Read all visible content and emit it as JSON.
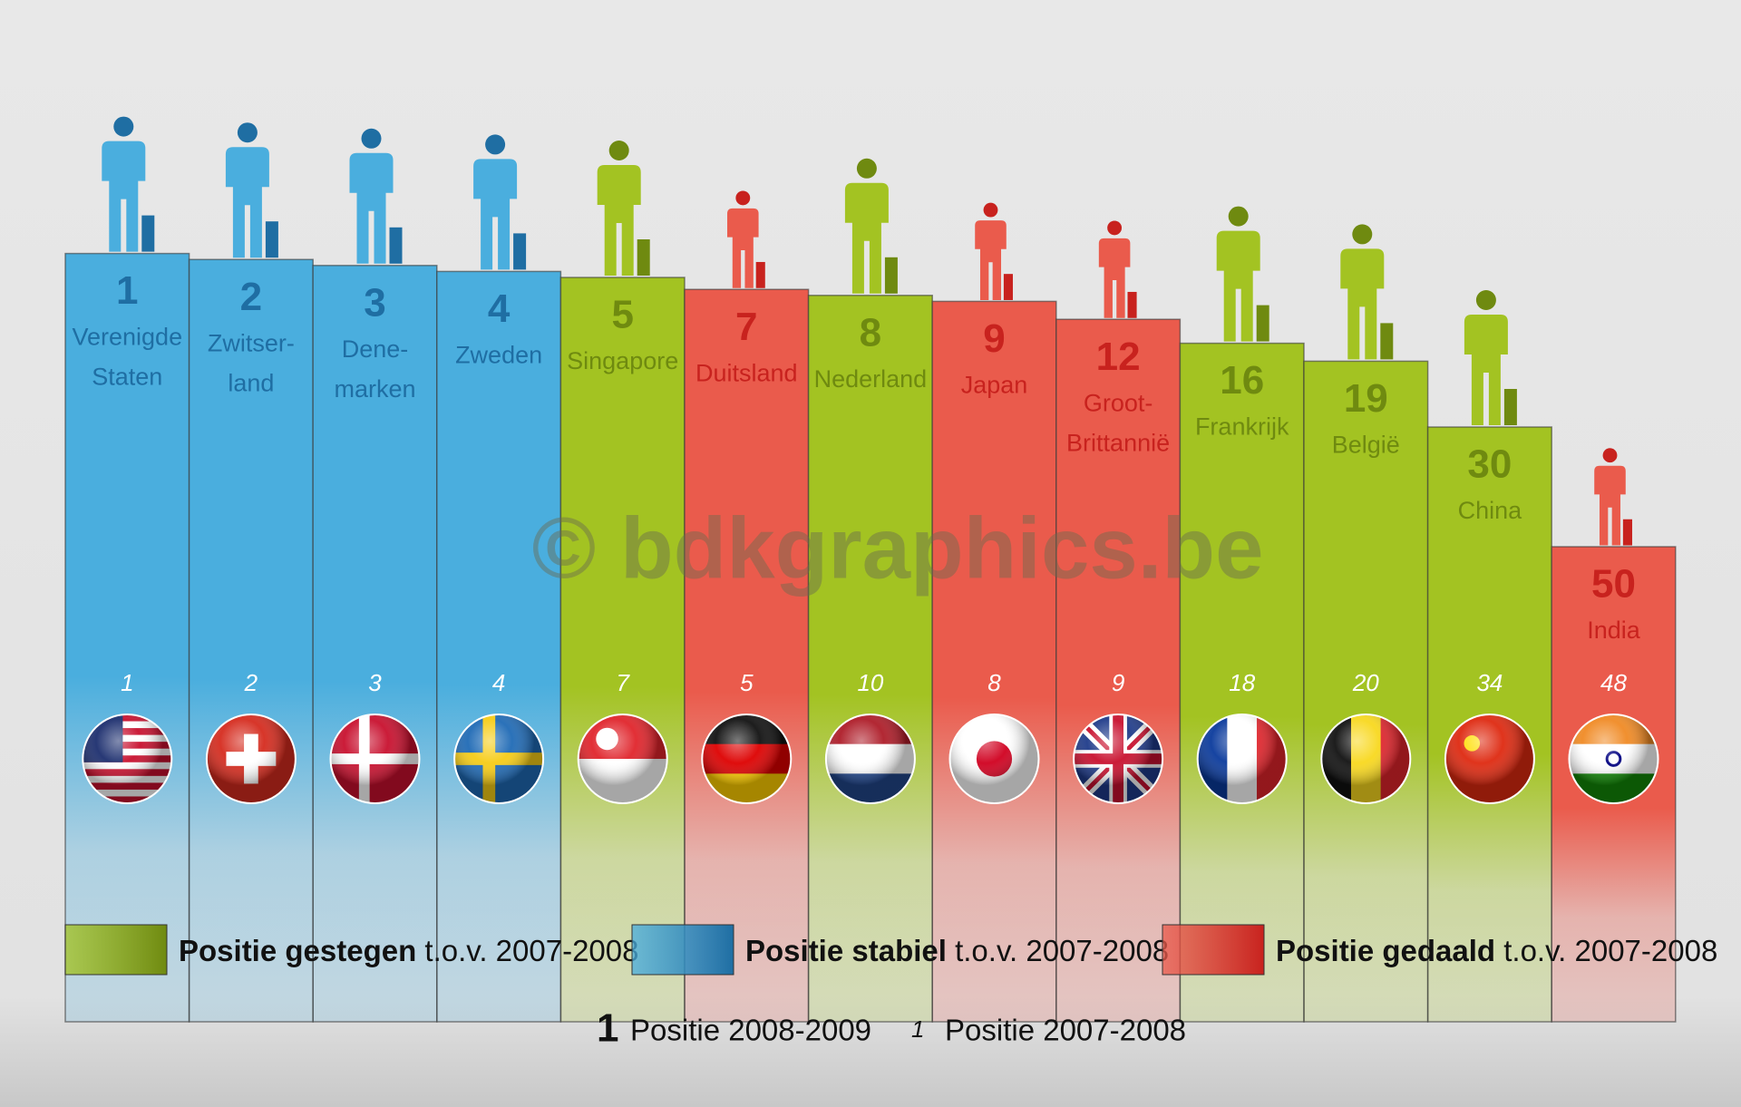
{
  "chart_data": {
    "type": "bar",
    "watermark": "© bdkgraphics.be",
    "categories": [
      [
        "Verenigde",
        "Staten"
      ],
      [
        "Zwitser-",
        "land"
      ],
      [
        "Dene-",
        "marken"
      ],
      [
        "Zweden"
      ],
      [
        "Singapore"
      ],
      [
        "Duitsland"
      ],
      [
        "Nederland"
      ],
      [
        "Japan"
      ],
      [
        "Groot-",
        "Brittannië"
      ],
      [
        "Frankrijk"
      ],
      [
        "België"
      ],
      [
        "China"
      ],
      [
        "India"
      ]
    ],
    "values": [
      1,
      2,
      3,
      4,
      5,
      7,
      8,
      9,
      12,
      16,
      19,
      30,
      50
    ],
    "previous": [
      1,
      2,
      3,
      4,
      7,
      5,
      10,
      8,
      9,
      18,
      20,
      34,
      48
    ],
    "colors": [
      "#4aaede",
      "#4aaede",
      "#4aaede",
      "#4aaede",
      "#a3c322",
      "#ea5b4c",
      "#a3c322",
      "#ea5b4c",
      "#ea5b4c",
      "#a3c322",
      "#a3c322",
      "#a3c322",
      "#ea5b4c"
    ],
    "ylim": [
      0,
      130
    ],
    "y_reversed": true,
    "legend": [
      {
        "color": "#a3c322",
        "bold": "Positie gestegen",
        "text": " t.o.v. 2007-2008"
      },
      {
        "color": "#4aaede",
        "bold": "Positie stabiel",
        "text": " t.o.v. 2007-2008"
      },
      {
        "color": "#ea5b4c",
        "bold": "Positie gedaald",
        "text": " t.o.v. 2007-2008"
      }
    ],
    "footer": [
      {
        "symbol": "1",
        "text": "Positie 2008-2009"
      },
      {
        "symbol": "1",
        "text": "Positie 2007-2008"
      }
    ]
  }
}
